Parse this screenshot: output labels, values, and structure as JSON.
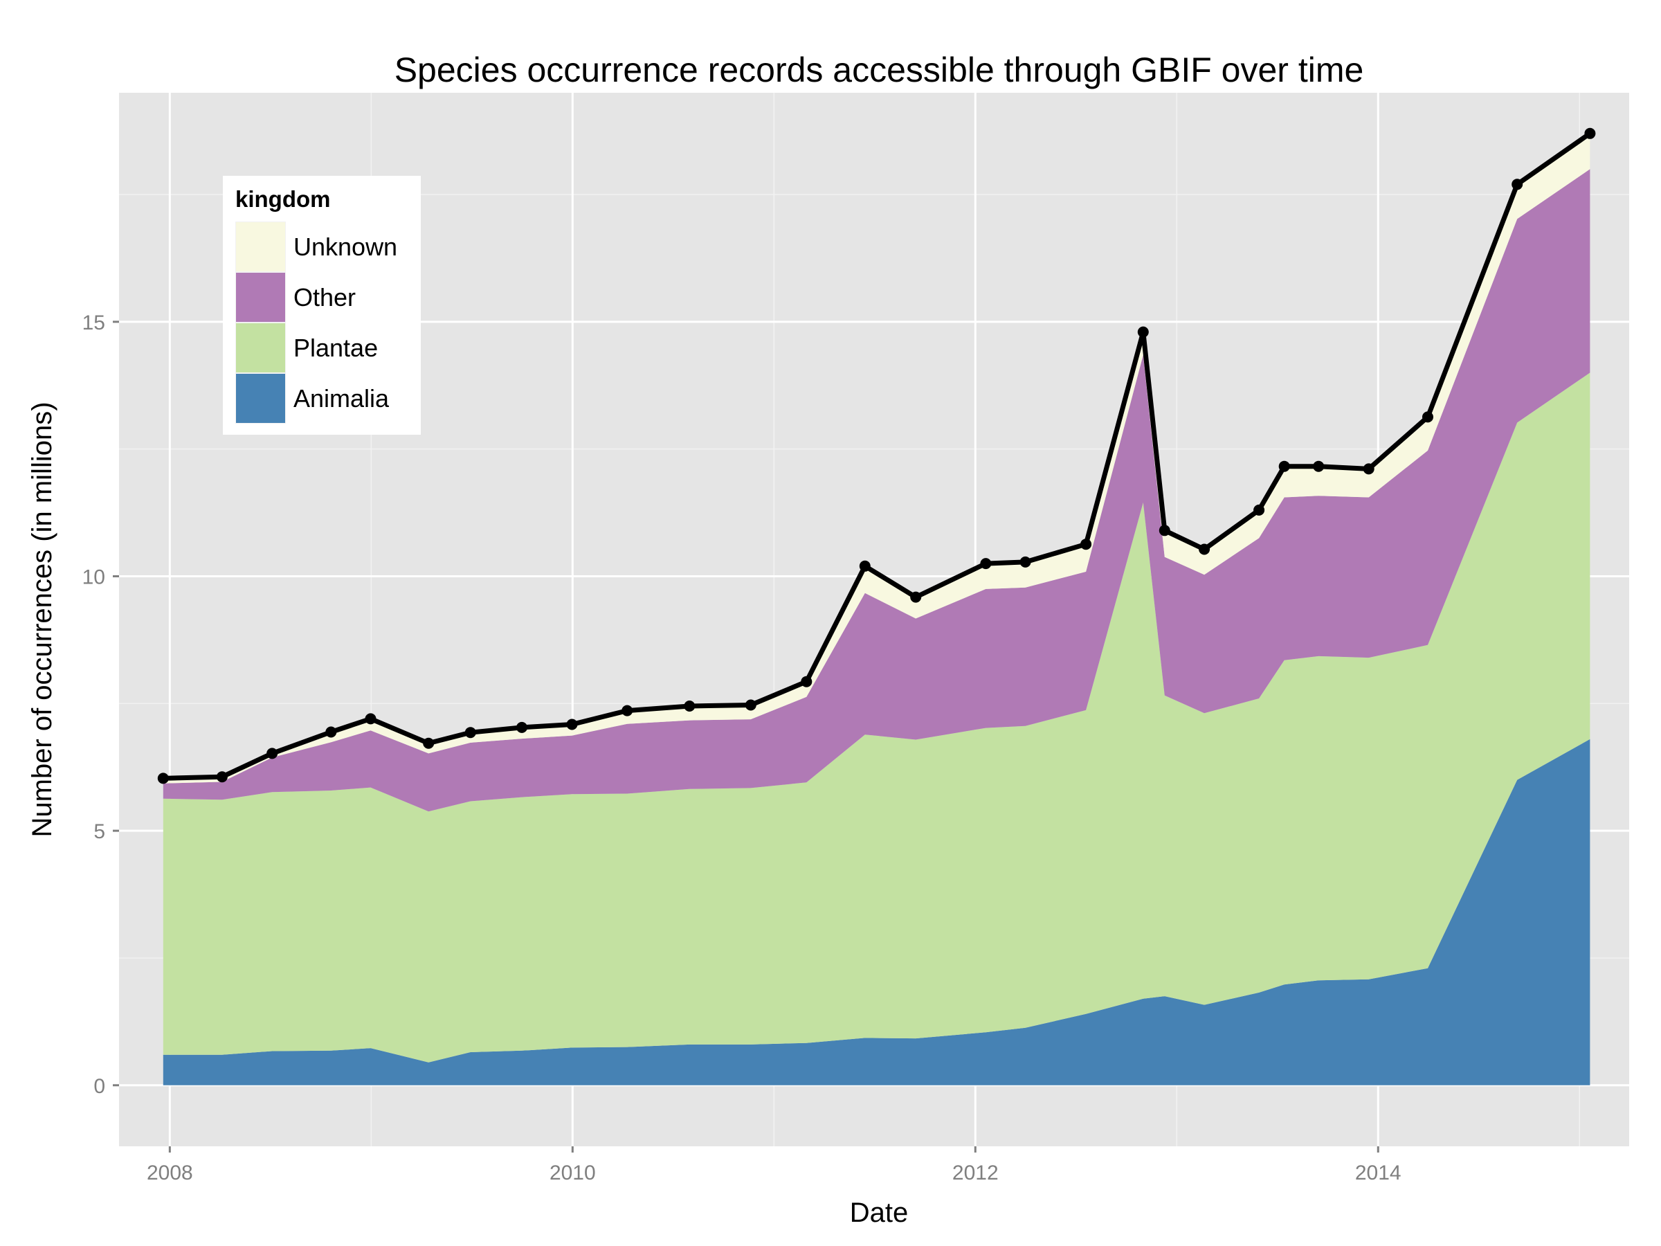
{
  "chart_data": {
    "type": "area",
    "stacked": true,
    "title": "Species occurrence records accessible through GBIF over time",
    "xlabel": "Date",
    "ylabel": "Number of occurrences (in millions)",
    "xlim": [
      "2007-10-01",
      "2015-04-01"
    ],
    "ylim": [
      -1.2,
      19.5
    ],
    "x_ticks": [
      {
        "value": "2008-01-01",
        "label": "2008"
      },
      {
        "value": "2010-01-01",
        "label": "2010"
      },
      {
        "value": "2012-01-01",
        "label": "2012"
      },
      {
        "value": "2014-01-01",
        "label": "2014"
      }
    ],
    "y_ticks": [
      0,
      5,
      10,
      15
    ],
    "grid": true,
    "legend": {
      "title": "kingdom",
      "position": "top-left"
    },
    "x": [
      "2007-12-20",
      "2008-04-05",
      "2008-07-05",
      "2008-10-20",
      "2008-12-31",
      "2009-04-15",
      "2009-06-30",
      "2009-10-01",
      "2009-12-31",
      "2010-04-10",
      "2010-08-01",
      "2010-11-20",
      "2011-03-01",
      "2011-06-15",
      "2011-09-15",
      "2012-01-20",
      "2012-04-01",
      "2012-07-20",
      "2012-11-01",
      "2012-12-10",
      "2013-02-20",
      "2013-05-30",
      "2013-07-15",
      "2013-09-15",
      "2013-12-15",
      "2014-04-01",
      "2014-09-10",
      "2015-01-20"
    ],
    "series": [
      {
        "name": "Animalia",
        "color": "#4682b4",
        "values": [
          0.6,
          0.6,
          0.67,
          0.68,
          0.73,
          0.45,
          0.65,
          0.68,
          0.74,
          0.75,
          0.8,
          0.8,
          0.83,
          0.93,
          0.92,
          1.04,
          1.13,
          1.4,
          1.7,
          1.75,
          1.58,
          1.82,
          1.98,
          2.06,
          2.08,
          2.3,
          6.0,
          6.8
        ]
      },
      {
        "name": "Plantae",
        "color": "#c3e1a1",
        "values": [
          5.03,
          5.01,
          5.09,
          5.11,
          5.12,
          4.93,
          4.93,
          4.98,
          4.98,
          4.98,
          5.02,
          5.04,
          5.12,
          5.96,
          5.87,
          5.98,
          5.93,
          5.97,
          9.75,
          5.91,
          5.73,
          5.78,
          6.37,
          6.37,
          6.32,
          6.35,
          7.02,
          7.2
        ]
      },
      {
        "name": "Other",
        "color": "#b07ab5",
        "values": [
          0.3,
          0.35,
          0.68,
          0.95,
          1.12,
          1.14,
          1.15,
          1.15,
          1.15,
          1.37,
          1.35,
          1.35,
          1.68,
          2.78,
          2.38,
          2.73,
          2.72,
          2.72,
          2.9,
          2.72,
          2.72,
          3.15,
          3.2,
          3.15,
          3.15,
          3.82,
          4.0,
          4.0
        ]
      },
      {
        "name": "Unknown",
        "color": "#f8f8e0",
        "values": [
          0.1,
          0.1,
          0.08,
          0.2,
          0.23,
          0.2,
          0.2,
          0.22,
          0.22,
          0.26,
          0.28,
          0.28,
          0.3,
          0.53,
          0.42,
          0.5,
          0.5,
          0.54,
          0.45,
          0.52,
          0.5,
          0.55,
          0.61,
          0.58,
          0.56,
          0.66,
          0.68,
          0.7
        ]
      }
    ],
    "total": {
      "name": "Total",
      "color": "#000000",
      "values": [
        6.03,
        6.06,
        6.52,
        6.94,
        7.2,
        6.72,
        6.93,
        7.03,
        7.09,
        7.36,
        7.45,
        7.47,
        7.93,
        10.2,
        9.59,
        10.25,
        10.28,
        10.63,
        14.8,
        10.9,
        10.53,
        11.3,
        12.16,
        12.16,
        12.11,
        13.13,
        17.7,
        18.7
      ]
    }
  }
}
